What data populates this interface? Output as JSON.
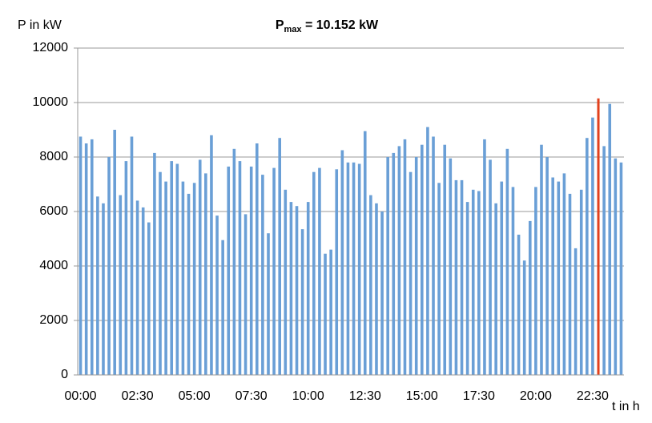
{
  "chart_data": {
    "type": "bar",
    "title": {
      "main": "P",
      "sub": "max",
      "rest": " = 10.152 kW"
    },
    "y_label": "P in kW",
    "x_label": "t in h",
    "categories": [
      "00:00",
      null,
      null,
      null,
      null,
      null,
      null,
      null,
      null,
      null,
      "02:30",
      null,
      null,
      null,
      null,
      null,
      null,
      null,
      null,
      null,
      "05:00",
      null,
      null,
      null,
      null,
      null,
      null,
      null,
      null,
      null,
      "07:30",
      null,
      null,
      null,
      null,
      null,
      null,
      null,
      null,
      null,
      "10:00",
      null,
      null,
      null,
      null,
      null,
      null,
      null,
      null,
      null,
      "12:30",
      null,
      null,
      null,
      null,
      null,
      null,
      null,
      null,
      null,
      "15:00",
      null,
      null,
      null,
      null,
      null,
      null,
      null,
      null,
      null,
      "17:30",
      null,
      null,
      null,
      null,
      null,
      null,
      null,
      null,
      null,
      "20:00",
      null,
      null,
      null,
      null,
      null,
      null,
      null,
      null,
      null,
      "22:30",
      null,
      null,
      null,
      null,
      null
    ],
    "values": [
      8750,
      8500,
      8650,
      6550,
      6300,
      8000,
      9000,
      6600,
      7850,
      8750,
      6400,
      6150,
      5600,
      8150,
      7450,
      7100,
      7850,
      7750,
      7100,
      6650,
      7050,
      7900,
      7400,
      8800,
      5850,
      4950,
      7650,
      8300,
      7850,
      5900,
      7650,
      8500,
      7350,
      5200,
      7600,
      8700,
      6800,
      6350,
      6200,
      5350,
      6350,
      7450,
      7600,
      4450,
      4600,
      7550,
      8250,
      7800,
      7800,
      7750,
      8950,
      6600,
      6300,
      6000,
      8000,
      8150,
      8400,
      8650,
      7450,
      8000,
      8450,
      9100,
      8750,
      7050,
      8450,
      7950,
      7150,
      7150,
      6350,
      6800,
      6750,
      8650,
      7900,
      6300,
      7100,
      8300,
      6900,
      5150,
      4200,
      5650,
      6900,
      8450,
      8000,
      7250,
      7100,
      7400,
      6650,
      4650,
      6800,
      8700,
      9450,
      10152,
      8400,
      9950,
      7950,
      7800
    ],
    "color": "#6a9fd6",
    "highlight": {
      "index": 91,
      "color": "#e2401c"
    },
    "ylim": [
      0,
      12000
    ],
    "yticks": [
      0,
      2000,
      4000,
      6000,
      8000,
      10000,
      12000
    ],
    "grid": true
  }
}
